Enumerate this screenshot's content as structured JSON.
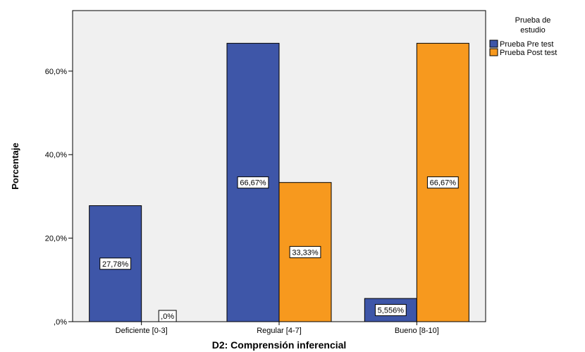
{
  "chart_data": {
    "type": "bar",
    "title": "",
    "xlabel": "D2: Comprensión inferencial",
    "ylabel": "Porcentaje",
    "categories": [
      "Deficiente [0-3]",
      "Regular [4-7]",
      "Bueno [8-10]"
    ],
    "ylim": [
      0,
      74.5
    ],
    "yticks": [
      0,
      20,
      40,
      60
    ],
    "ytick_labels": [
      ",0%",
      "20,0%",
      "40,0%",
      "60,0%"
    ],
    "grid": false,
    "legend": {
      "title": "Prueba de estudio",
      "title_lines": [
        "Prueba de",
        "estudio"
      ],
      "placement": "top-right outside"
    },
    "series": [
      {
        "name": "Prueba Pre test",
        "color": "#3e56a8",
        "values": [
          27.78,
          66.67,
          5.556
        ],
        "labels": [
          "27,78%",
          "66,67%",
          "5,556%"
        ]
      },
      {
        "name": "Prueba Post test",
        "color": "#f7991e",
        "values": [
          0,
          33.33,
          66.67
        ],
        "labels": [
          ",0%",
          "33,33%",
          "66,67%"
        ]
      }
    ],
    "plot_background": "#f0f0f0"
  }
}
